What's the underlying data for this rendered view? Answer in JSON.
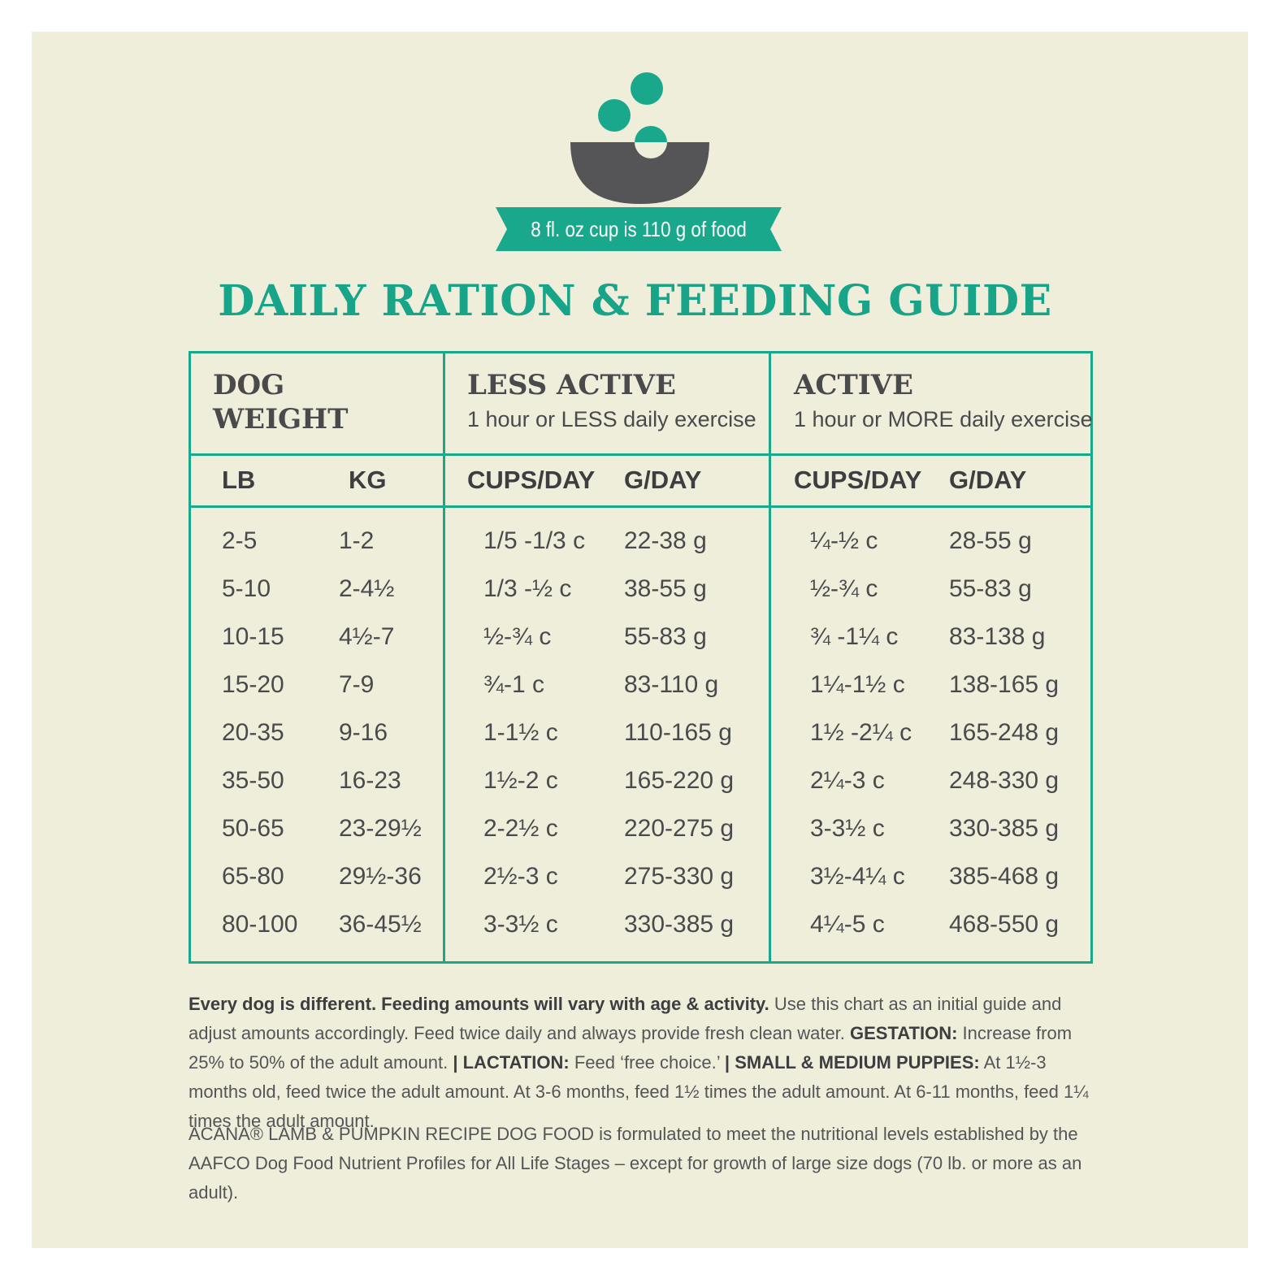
{
  "colors": {
    "background": "#efeedb",
    "accent": "#1aa88d",
    "text": "#4a4a4c",
    "bowl": "#555557"
  },
  "icon": "food-bowl-icon",
  "ribbon": {
    "text": "8 fl. oz cup is 110 g of food"
  },
  "title": "DAILY RATION & FEEDING GUIDE",
  "table": {
    "groups": [
      {
        "title_line1": "DOG",
        "title_line2": "WEIGHT"
      },
      {
        "title": "LESS ACTIVE",
        "subtitle": "1 hour or LESS daily exercise"
      },
      {
        "title": "ACTIVE",
        "subtitle": "1 hour or MORE daily exercise"
      }
    ],
    "columns": [
      "LB",
      "KG",
      "CUPS/DAY",
      "G/DAY",
      "CUPS/DAY",
      "G/DAY"
    ],
    "rows": [
      [
        "2-5",
        "1-2",
        "1/5 -1/3 c",
        "22-38 g",
        "¼-½ c",
        "28-55 g"
      ],
      [
        "5-10",
        "2-4½",
        "1/3 -½ c",
        "38-55 g",
        "½-¾ c",
        "55-83 g"
      ],
      [
        "10-15",
        "4½-7",
        "½-¾ c",
        "55-83 g",
        "¾ -1¼ c",
        "83-138 g"
      ],
      [
        "15-20",
        "7-9",
        "¾-1 c",
        "83-110 g",
        "1¼-1½ c",
        "138-165 g"
      ],
      [
        "20-35",
        "9-16",
        "1-1½ c",
        "110-165 g",
        "1½ -2¼ c",
        "165-248 g"
      ],
      [
        "35-50",
        "16-23",
        "1½-2 c",
        "165-220 g",
        "2¼-3 c",
        "248-330 g"
      ],
      [
        "50-65",
        "23-29½",
        "2-2½ c",
        "220-275 g",
        "3-3½ c",
        "330-385 g"
      ],
      [
        "65-80",
        "29½-36",
        "2½-3 c",
        "275-330 g",
        "3½-4¼ c",
        "385-468 g"
      ],
      [
        "80-100",
        "36-45½",
        "3-3½ c",
        "330-385 g",
        "4¼-5 c",
        "468-550 g"
      ]
    ]
  },
  "notes": {
    "lead_bold": "Every dog is different. Feeding amounts will vary with age & activity.",
    "lead_text": " Use this chart as an initial guide and adjust amounts accordingly. Feed twice daily and always provide fresh clean water. ",
    "gestation_label": "GESTATION:",
    "gestation_text": " Increase from 25% to 50% of the adult amount. ",
    "lactation_label": "| LACTATION:",
    "lactation_text": " Feed ‘free choice.’ ",
    "puppies_label": "| SMALL & MEDIUM PUPPIES:",
    "puppies_text": " At 1½-3 months old, feed twice the adult amount. At 3-6 months, feed 1½ times the adult amount. At 6-11 months, feed 1¼ times the adult amount."
  },
  "footer": "ACANA® LAMB & PUMPKIN RECIPE DOG FOOD is formulated to meet the nutritional levels established by the AAFCO Dog Food Nutrient Profiles for All Life Stages – except for growth of large size dogs (70 lb. or more as an adult)."
}
